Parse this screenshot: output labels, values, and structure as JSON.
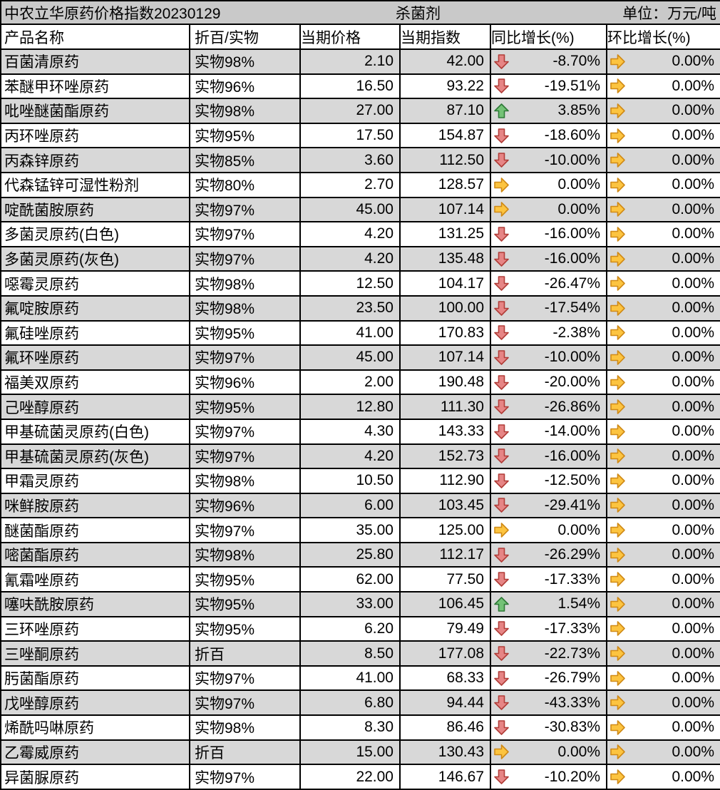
{
  "title_bar": {
    "title": "中农立华原药价格指数20230129",
    "category": "杀菌剂",
    "unit": "单位：万元/吨"
  },
  "columns": [
    "产品名称",
    "折百/实物",
    "当期价格",
    "当期指数",
    "同比增长(%)",
    "环比增长(%)"
  ],
  "colors": {
    "title_row_bg": "#c9c9c9",
    "shade_row_bg": "#d8d8d8",
    "border": "#000000",
    "up_fill": "#74c276",
    "up_stroke": "#2f7a38",
    "down_fill": "#e68585",
    "down_stroke": "#b13d38",
    "right_fill": "#fcc440",
    "right_stroke": "#d08a16"
  },
  "rows": [
    {
      "name": "百菌清原药",
      "spec": "实物98%",
      "price": "2.10",
      "index": "42.00",
      "yoy": "-8.70%",
      "yoy_dir": "down",
      "mom": "0.00%",
      "mom_dir": "right"
    },
    {
      "name": "苯醚甲环唑原药",
      "spec": "实物96%",
      "price": "16.50",
      "index": "93.22",
      "yoy": "-19.51%",
      "yoy_dir": "down",
      "mom": "0.00%",
      "mom_dir": "right"
    },
    {
      "name": "吡唑醚菌酯原药",
      "spec": "实物98%",
      "price": "27.00",
      "index": "87.10",
      "yoy": "3.85%",
      "yoy_dir": "up",
      "mom": "0.00%",
      "mom_dir": "right"
    },
    {
      "name": "丙环唑原药",
      "spec": "实物95%",
      "price": "17.50",
      "index": "154.87",
      "yoy": "-18.60%",
      "yoy_dir": "down",
      "mom": "0.00%",
      "mom_dir": "right"
    },
    {
      "name": "丙森锌原药",
      "spec": "实物85%",
      "price": "3.60",
      "index": "112.50",
      "yoy": "-10.00%",
      "yoy_dir": "down",
      "mom": "0.00%",
      "mom_dir": "right"
    },
    {
      "name": "代森锰锌可湿性粉剂",
      "spec": "实物80%",
      "price": "2.70",
      "index": "128.57",
      "yoy": "0.00%",
      "yoy_dir": "right",
      "mom": "0.00%",
      "mom_dir": "right"
    },
    {
      "name": "啶酰菌胺原药",
      "spec": "实物97%",
      "price": "45.00",
      "index": "107.14",
      "yoy": "0.00%",
      "yoy_dir": "right",
      "mom": "0.00%",
      "mom_dir": "right"
    },
    {
      "name": "多菌灵原药(白色)",
      "spec": "实物97%",
      "price": "4.20",
      "index": "131.25",
      "yoy": "-16.00%",
      "yoy_dir": "down",
      "mom": "0.00%",
      "mom_dir": "right"
    },
    {
      "name": "多菌灵原药(灰色)",
      "spec": "实物97%",
      "price": "4.20",
      "index": "135.48",
      "yoy": "-16.00%",
      "yoy_dir": "down",
      "mom": "0.00%",
      "mom_dir": "right"
    },
    {
      "name": "噁霉灵原药",
      "spec": "实物98%",
      "price": "12.50",
      "index": "104.17",
      "yoy": "-26.47%",
      "yoy_dir": "down",
      "mom": "0.00%",
      "mom_dir": "right"
    },
    {
      "name": "氟啶胺原药",
      "spec": "实物98%",
      "price": "23.50",
      "index": "100.00",
      "yoy": "-17.54%",
      "yoy_dir": "down",
      "mom": "0.00%",
      "mom_dir": "right"
    },
    {
      "name": "氟硅唑原药",
      "spec": "实物95%",
      "price": "41.00",
      "index": "170.83",
      "yoy": "-2.38%",
      "yoy_dir": "down",
      "mom": "0.00%",
      "mom_dir": "right"
    },
    {
      "name": "氟环唑原药",
      "spec": "实物97%",
      "price": "45.00",
      "index": "107.14",
      "yoy": "-10.00%",
      "yoy_dir": "down",
      "mom": "0.00%",
      "mom_dir": "right"
    },
    {
      "name": "福美双原药",
      "spec": "实物96%",
      "price": "2.00",
      "index": "190.48",
      "yoy": "-20.00%",
      "yoy_dir": "down",
      "mom": "0.00%",
      "mom_dir": "right"
    },
    {
      "name": "己唑醇原药",
      "spec": "实物95%",
      "price": "12.80",
      "index": "111.30",
      "yoy": "-26.86%",
      "yoy_dir": "down",
      "mom": "0.00%",
      "mom_dir": "right"
    },
    {
      "name": "甲基硫菌灵原药(白色)",
      "spec": "实物97%",
      "price": "4.30",
      "index": "143.33",
      "yoy": "-14.00%",
      "yoy_dir": "down",
      "mom": "0.00%",
      "mom_dir": "right"
    },
    {
      "name": "甲基硫菌灵原药(灰色)",
      "spec": "实物97%",
      "price": "4.20",
      "index": "152.73",
      "yoy": "-16.00%",
      "yoy_dir": "down",
      "mom": "0.00%",
      "mom_dir": "right"
    },
    {
      "name": "甲霜灵原药",
      "spec": "实物98%",
      "price": "10.50",
      "index": "112.90",
      "yoy": "-12.50%",
      "yoy_dir": "down",
      "mom": "0.00%",
      "mom_dir": "right"
    },
    {
      "name": "咪鲜胺原药",
      "spec": "实物96%",
      "price": "6.00",
      "index": "103.45",
      "yoy": "-29.41%",
      "yoy_dir": "down",
      "mom": "0.00%",
      "mom_dir": "right"
    },
    {
      "name": "醚菌酯原药",
      "spec": "实物97%",
      "price": "35.00",
      "index": "125.00",
      "yoy": "0.00%",
      "yoy_dir": "right",
      "mom": "0.00%",
      "mom_dir": "right"
    },
    {
      "name": "嘧菌酯原药",
      "spec": "实物98%",
      "price": "25.80",
      "index": "112.17",
      "yoy": "-26.29%",
      "yoy_dir": "down",
      "mom": "0.00%",
      "mom_dir": "right"
    },
    {
      "name": "氰霜唑原药",
      "spec": "实物95%",
      "price": "62.00",
      "index": "77.50",
      "yoy": "-17.33%",
      "yoy_dir": "down",
      "mom": "0.00%",
      "mom_dir": "right"
    },
    {
      "name": "噻呋酰胺原药",
      "spec": "实物95%",
      "price": "33.00",
      "index": "106.45",
      "yoy": "1.54%",
      "yoy_dir": "up",
      "mom": "0.00%",
      "mom_dir": "right"
    },
    {
      "name": "三环唑原药",
      "spec": "实物95%",
      "price": "6.20",
      "index": "79.49",
      "yoy": "-17.33%",
      "yoy_dir": "down",
      "mom": "0.00%",
      "mom_dir": "right"
    },
    {
      "name": "三唑酮原药",
      "spec": "折百",
      "price": "8.50",
      "index": "177.08",
      "yoy": "-22.73%",
      "yoy_dir": "down",
      "mom": "0.00%",
      "mom_dir": "right"
    },
    {
      "name": "肟菌酯原药",
      "spec": "实物97%",
      "price": "41.00",
      "index": "68.33",
      "yoy": "-26.79%",
      "yoy_dir": "down",
      "mom": "0.00%",
      "mom_dir": "right"
    },
    {
      "name": "戊唑醇原药",
      "spec": "实物97%",
      "price": "6.80",
      "index": "94.44",
      "yoy": "-43.33%",
      "yoy_dir": "down",
      "mom": "0.00%",
      "mom_dir": "right"
    },
    {
      "name": "烯酰吗啉原药",
      "spec": "实物98%",
      "price": "8.30",
      "index": "86.46",
      "yoy": "-30.83%",
      "yoy_dir": "down",
      "mom": "0.00%",
      "mom_dir": "right"
    },
    {
      "name": "乙霉威原药",
      "spec": "折百",
      "price": "15.00",
      "index": "130.43",
      "yoy": "0.00%",
      "yoy_dir": "right",
      "mom": "0.00%",
      "mom_dir": "right"
    },
    {
      "name": "异菌脲原药",
      "spec": "实物97%",
      "price": "22.00",
      "index": "146.67",
      "yoy": "-10.20%",
      "yoy_dir": "down",
      "mom": "0.00%",
      "mom_dir": "right"
    }
  ]
}
